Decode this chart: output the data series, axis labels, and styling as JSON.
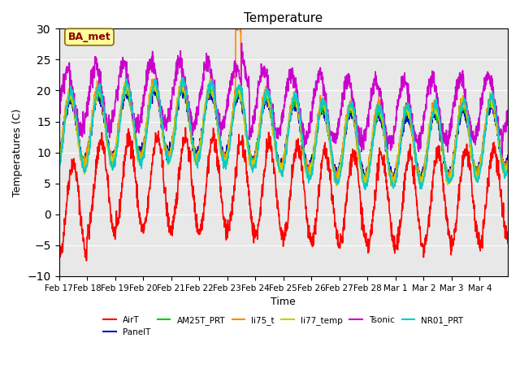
{
  "title": "Temperature",
  "ylabel": "Temperatures (C)",
  "xlabel": "Time",
  "ylim": [
    -10,
    30
  ],
  "background_color": "#e8e8e8",
  "annotation_text": "BA_met",
  "annotation_color": "#8b0000",
  "annotation_bg": "#ffff99",
  "series_names": [
    "AirT",
    "PanelT",
    "AM25T_PRT",
    "li75_t",
    "li77_temp",
    "Tsonic",
    "NR01_PRT"
  ],
  "series_colors": [
    "#ff0000",
    "#0000cc",
    "#00cc00",
    "#ff8800",
    "#cccc00",
    "#cc00cc",
    "#00cccc"
  ],
  "series_lw": [
    1.2,
    1.2,
    1.2,
    1.2,
    1.2,
    1.2,
    1.2
  ],
  "xtick_labels": [
    "Feb 17",
    "Feb 18",
    "Feb 19",
    "Feb 20",
    "Feb 21",
    "Feb 22",
    "Feb 23",
    "Feb 24",
    "Feb 25",
    "Feb 26",
    "Feb 27",
    "Feb 28",
    "Mar 1",
    "Mar 2",
    "Mar 3",
    "Mar 4"
  ],
  "n_points": 1632
}
